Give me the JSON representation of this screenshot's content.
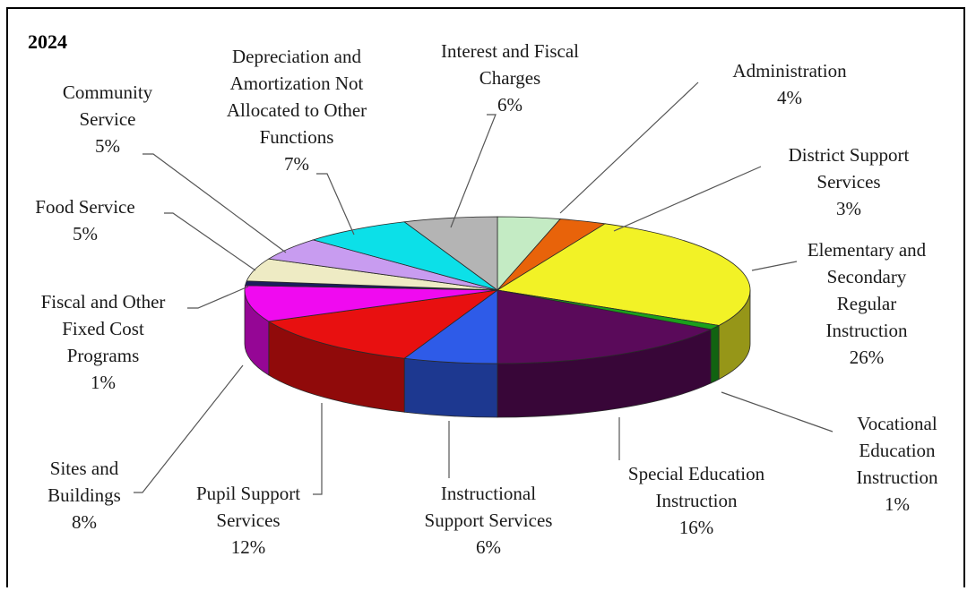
{
  "chart_data": {
    "type": "pie",
    "title": "2024",
    "slices": [
      {
        "lines": [
          "Administration",
          "4%"
        ],
        "value": 4,
        "color": "#C4EBC4"
      },
      {
        "lines": [
          "District Support",
          "Services",
          "3%"
        ],
        "value": 3,
        "color": "#E8630A"
      },
      {
        "lines": [
          "Elementary and",
          "Secondary",
          "Regular",
          "Instruction",
          "26%"
        ],
        "value": 26,
        "color": "#F2F226"
      },
      {
        "lines": [
          "Vocational",
          "Education",
          "Instruction",
          "1%"
        ],
        "value": 1,
        "color": "#1BA01B"
      },
      {
        "lines": [
          "Special Education",
          "Instruction",
          "16%"
        ],
        "value": 16,
        "color": "#5A0A5A"
      },
      {
        "lines": [
          "Instructional",
          "Support Services",
          "6%"
        ],
        "value": 6,
        "color": "#2E5BE8"
      },
      {
        "lines": [
          "Pupil Support",
          "Services",
          "12%"
        ],
        "value": 12,
        "color": "#E81010"
      },
      {
        "lines": [
          "Sites and",
          "Buildings",
          "8%"
        ],
        "value": 8,
        "color": "#F00AF0"
      },
      {
        "lines": [
          "Fiscal and Other",
          "Fixed Cost",
          "Programs",
          "1%"
        ],
        "value": 1,
        "color": "#1C1C5C"
      },
      {
        "lines": [
          "Food Service",
          "5%"
        ],
        "value": 5,
        "color": "#EEEBC4"
      },
      {
        "lines": [
          "Community",
          "Service",
          "5%"
        ],
        "value": 5,
        "color": "#C89CF0"
      },
      {
        "lines": [
          "Depreciation and",
          "Amortization Not",
          "Allocated to Other",
          "Functions",
          "7%"
        ],
        "value": 7,
        "color": "#0CE0E8"
      },
      {
        "lines": [
          "Interest and Fiscal",
          "Charges",
          "6%"
        ],
        "value": 6,
        "color": "#B4B4B4"
      }
    ]
  }
}
